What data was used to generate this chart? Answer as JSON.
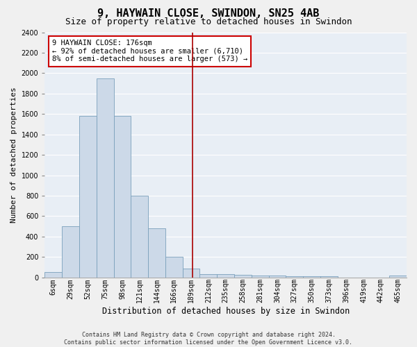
{
  "title": "9, HAYWAIN CLOSE, SWINDON, SN25 4AB",
  "subtitle": "Size of property relative to detached houses in Swindon",
  "xlabel": "Distribution of detached houses by size in Swindon",
  "ylabel": "Number of detached properties",
  "bar_labels": [
    "6sqm",
    "29sqm",
    "52sqm",
    "75sqm",
    "98sqm",
    "121sqm",
    "144sqm",
    "166sqm",
    "189sqm",
    "212sqm",
    "235sqm",
    "258sqm",
    "281sqm",
    "304sqm",
    "327sqm",
    "350sqm",
    "373sqm",
    "396sqm",
    "419sqm",
    "442sqm",
    "465sqm"
  ],
  "bar_values": [
    50,
    500,
    1580,
    1950,
    1580,
    800,
    480,
    200,
    90,
    35,
    30,
    25,
    20,
    18,
    15,
    12,
    10,
    0,
    0,
    0,
    20
  ],
  "bar_color": "#ccd9e8",
  "bar_edgecolor": "#7aa0bb",
  "ylim": [
    0,
    2400
  ],
  "yticks": [
    0,
    200,
    400,
    600,
    800,
    1000,
    1200,
    1400,
    1600,
    1800,
    2000,
    2200,
    2400
  ],
  "annotation_title": "9 HAYWAIN CLOSE: 176sqm",
  "annotation_line1": "← 92% of detached houses are smaller (6,710)",
  "annotation_line2": "8% of semi-detached houses are larger (573) →",
  "vline_position": 8.08,
  "vline_color": "#aa0000",
  "annotation_box_color": "#ffffff",
  "annotation_box_edgecolor": "#cc0000",
  "plot_bg_color": "#e8eef5",
  "fig_bg_color": "#f0f0f0",
  "footer_line1": "Contains HM Land Registry data © Crown copyright and database right 2024.",
  "footer_line2": "Contains public sector information licensed under the Open Government Licence v3.0.",
  "title_fontsize": 11,
  "subtitle_fontsize": 9,
  "ylabel_fontsize": 8,
  "xlabel_fontsize": 8.5,
  "tick_fontsize": 7,
  "annot_fontsize": 7.5,
  "footer_fontsize": 6
}
